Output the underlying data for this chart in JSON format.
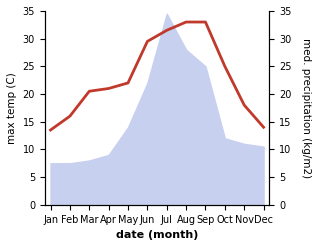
{
  "months": [
    "Jan",
    "Feb",
    "Mar",
    "Apr",
    "May",
    "Jun",
    "Jul",
    "Aug",
    "Sep",
    "Oct",
    "Nov",
    "Dec"
  ],
  "temp": [
    13.5,
    16.0,
    20.5,
    21.0,
    22.0,
    29.5,
    31.5,
    33.0,
    33.0,
    25.0,
    18.0,
    14.0
  ],
  "precip": [
    7.5,
    7.5,
    8.0,
    9.0,
    14.0,
    22.0,
    34.5,
    28.0,
    25.0,
    12.0,
    11.0,
    10.5
  ],
  "temp_color": "#c0392b",
  "precip_fill_color": "#c8d0f0",
  "background_color": "#ffffff",
  "ylabel_left": "max temp (C)",
  "ylabel_right": "med. precipitation (kg/m2)",
  "xlabel": "date (month)",
  "ylim_left": [
    0,
    35
  ],
  "ylim_right": [
    0,
    35
  ],
  "temp_linewidth": 2.0,
  "xlabel_fontsize": 8,
  "ylabel_fontsize": 7.5,
  "tick_fontsize": 7
}
